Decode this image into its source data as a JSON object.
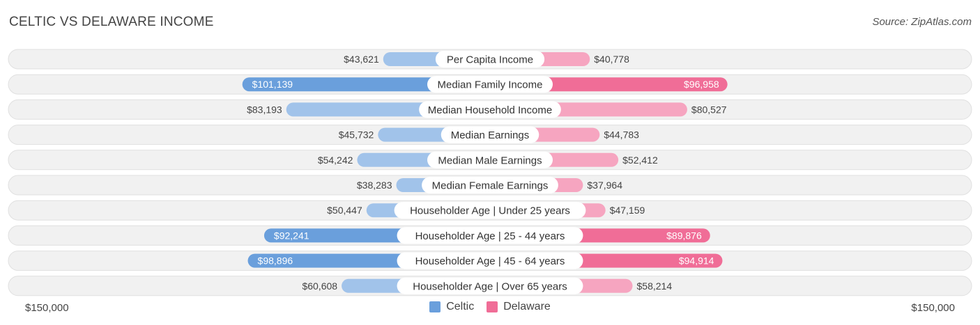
{
  "header": {
    "title": "CELTIC VS DELAWARE INCOME",
    "source": "Source: ZipAtlas.com"
  },
  "axis": {
    "left_label": "$150,000",
    "right_label": "$150,000"
  },
  "legend": {
    "celtic": "Celtic",
    "delaware": "Delaware"
  },
  "colors": {
    "celtic_strong": "#6a9fdc",
    "celtic_light": "#a1c3ea",
    "delaware_strong": "#f06d97",
    "delaware_light": "#f6a5c0",
    "row_bg": "#f1f1f1",
    "row_border": "#e0e0e0"
  },
  "chart_data": {
    "type": "bar",
    "title": "CELTIC VS DELAWARE INCOME",
    "orientation": "horizontal-diverging",
    "xlim": [
      0,
      150000
    ],
    "categories": [
      "Per Capita Income",
      "Median Family Income",
      "Median Household Income",
      "Median Earnings",
      "Median Male Earnings",
      "Median Female Earnings",
      "Householder Age | Under 25 years",
      "Householder Age | 25 - 44 years",
      "Householder Age | 45 - 64 years",
      "Householder Age | Over 65 years"
    ],
    "series": [
      {
        "name": "Celtic",
        "values": [
          43621,
          101139,
          83193,
          45732,
          54242,
          38283,
          50447,
          92241,
          98896,
          60608
        ],
        "labels": [
          "$43,621",
          "$101,139",
          "$83,193",
          "$45,732",
          "$54,242",
          "$38,283",
          "$50,447",
          "$92,241",
          "$98,896",
          "$60,608"
        ]
      },
      {
        "name": "Delaware",
        "values": [
          40778,
          96958,
          80527,
          44783,
          52412,
          37964,
          47159,
          89876,
          94914,
          58214
        ],
        "labels": [
          "$40,778",
          "$96,958",
          "$80,527",
          "$44,783",
          "$52,412",
          "$37,964",
          "$47,159",
          "$89,876",
          "$94,914",
          "$58,214"
        ]
      }
    ]
  }
}
